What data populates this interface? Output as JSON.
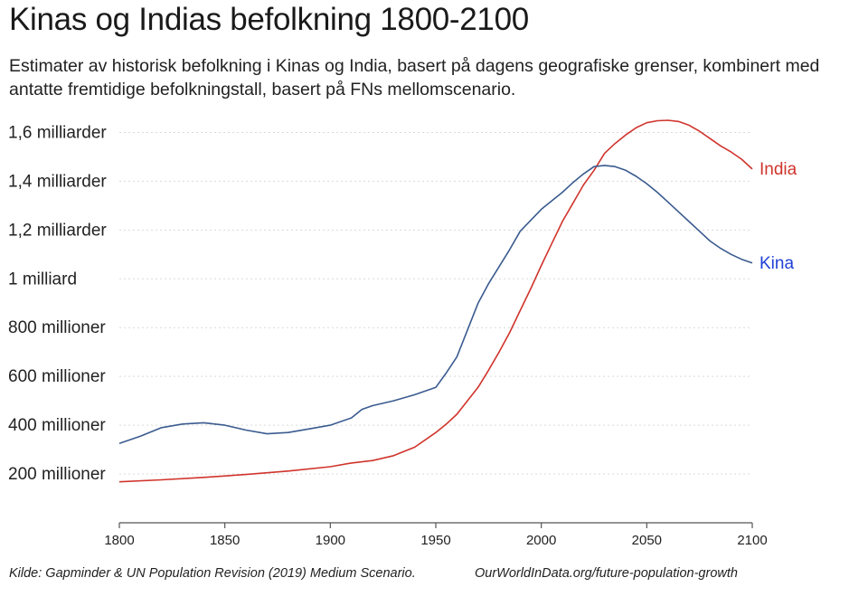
{
  "title": "Kinas og Indias befolkning 1800-2100",
  "subtitle": "Estimater av historisk befolkning i Kinas og India, basert på dagens geografiske grenser, kombinert med antatte fremtidige befolkningstall, basert på FNs mellomscenario.",
  "source": "Kilde: Gapminder & UN Population Revision (2019) Medium Scenario.",
  "url": "OurWorldInData.org/future-population-growth",
  "colors": {
    "india": "#d0342c",
    "china": "#3a5b8f",
    "china_label": "#1f3fd6",
    "grid": "#d9d9d9"
  },
  "chart_data": {
    "type": "line",
    "title": "Kinas og Indias befolkning 1800-2100",
    "xlabel": "",
    "ylabel": "",
    "xlim": [
      1800,
      2100
    ],
    "ylim": [
      0,
      1700
    ],
    "x_ticks": [
      1800,
      1850,
      1900,
      1950,
      2000,
      2050,
      2100
    ],
    "x_tick_labels": [
      "1800",
      "1850",
      "1900",
      "1950",
      "2000",
      "2050",
      "2100"
    ],
    "y_ticks": [
      200,
      400,
      600,
      800,
      1000,
      1200,
      1400,
      1600
    ],
    "y_tick_labels": [
      "200 millioner",
      "400 millioner",
      "600 millioner",
      "800 millioner",
      "1 milliard",
      "1,2 milliarder",
      "1,4 milliarder",
      "1,6 milliarder"
    ],
    "grid": true,
    "series": [
      {
        "name": "India",
        "label": "India",
        "x": [
          1800,
          1820,
          1840,
          1860,
          1880,
          1900,
          1910,
          1920,
          1930,
          1940,
          1950,
          1955,
          1960,
          1965,
          1970,
          1975,
          1980,
          1985,
          1990,
          1995,
          2000,
          2005,
          2010,
          2015,
          2020,
          2025,
          2030,
          2035,
          2040,
          2045,
          2050,
          2055,
          2060,
          2065,
          2070,
          2075,
          2080,
          2085,
          2090,
          2095,
          2100
        ],
        "values": [
          168,
          176,
          186,
          198,
          212,
          230,
          245,
          255,
          275,
          310,
          370,
          405,
          445,
          500,
          555,
          625,
          700,
          780,
          870,
          960,
          1055,
          1145,
          1235,
          1310,
          1385,
          1445,
          1515,
          1555,
          1590,
          1620,
          1640,
          1648,
          1650,
          1645,
          1630,
          1605,
          1575,
          1545,
          1520,
          1490,
          1450
        ]
      },
      {
        "name": "Kina",
        "label": "Kina",
        "x": [
          1800,
          1810,
          1820,
          1830,
          1840,
          1850,
          1860,
          1870,
          1880,
          1890,
          1900,
          1910,
          1915,
          1920,
          1930,
          1940,
          1950,
          1955,
          1960,
          1965,
          1970,
          1975,
          1980,
          1985,
          1990,
          1995,
          2000,
          2005,
          2010,
          2015,
          2020,
          2025,
          2030,
          2035,
          2040,
          2045,
          2050,
          2055,
          2060,
          2065,
          2070,
          2075,
          2080,
          2085,
          2090,
          2095,
          2100
        ],
        "values": [
          325,
          355,
          390,
          405,
          410,
          400,
          380,
          365,
          370,
          385,
          400,
          430,
          465,
          480,
          500,
          525,
          555,
          615,
          680,
          790,
          900,
          980,
          1050,
          1120,
          1195,
          1240,
          1285,
          1320,
          1355,
          1395,
          1430,
          1460,
          1465,
          1460,
          1445,
          1420,
          1390,
          1355,
          1315,
          1275,
          1235,
          1195,
          1155,
          1125,
          1100,
          1080,
          1065
        ]
      }
    ]
  }
}
